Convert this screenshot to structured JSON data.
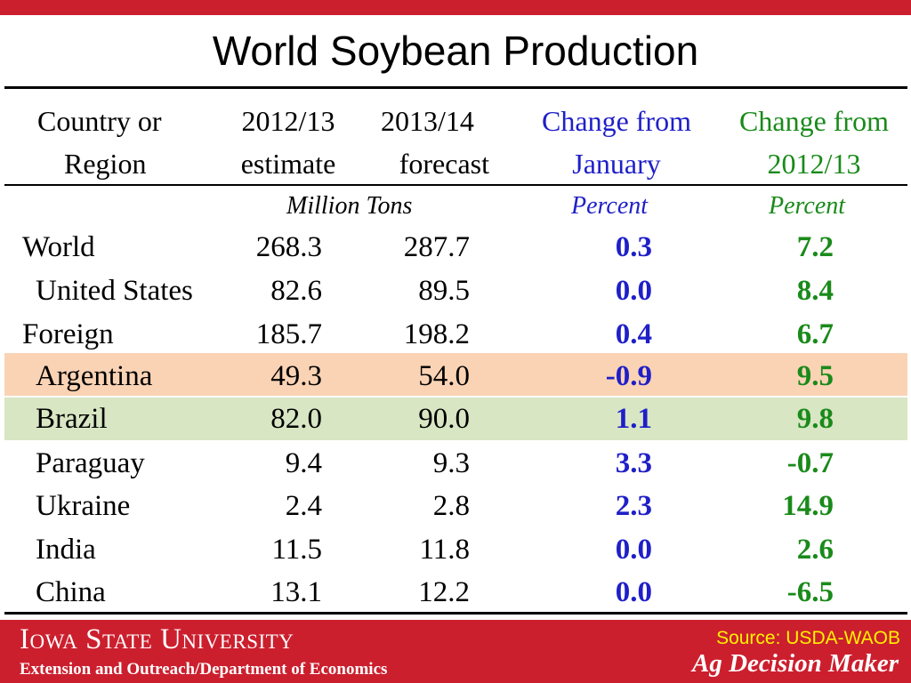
{
  "title": "World Soybean Production",
  "headers": {
    "country": [
      "Country or",
      "Region"
    ],
    "estimate": [
      "2012/13",
      "estimate"
    ],
    "forecast": [
      "2013/14",
      "forecast"
    ],
    "change_jan": [
      "Change from",
      "January"
    ],
    "change_year": [
      "Change from",
      "2012/13"
    ]
  },
  "units": {
    "tons": "Million Tons",
    "percent_jan": "Percent",
    "percent_year": "Percent"
  },
  "rows": [
    {
      "name": "World",
      "estimate": "268.3",
      "forecast": "287.7",
      "change_jan": "0.3",
      "change_year": "7.2"
    },
    {
      "name": "United States",
      "estimate": "82.6",
      "forecast": "89.5",
      "change_jan": "0.0",
      "change_year": "8.4"
    },
    {
      "name": "Foreign",
      "estimate": "185.7",
      "forecast": "198.2",
      "change_jan": "0.4",
      "change_year": "6.7"
    },
    {
      "name": "Argentina",
      "estimate": "49.3",
      "forecast": "54.0",
      "change_jan": "-0.9",
      "change_year": "9.5"
    },
    {
      "name": "Brazil",
      "estimate": "82.0",
      "forecast": "90.0",
      "change_jan": "1.1",
      "change_year": "9.8"
    },
    {
      "name": "Paraguay",
      "estimate": "9.4",
      "forecast": "9.3",
      "change_jan": "3.3",
      "change_year": "-0.7"
    },
    {
      "name": "Ukraine",
      "estimate": "2.4",
      "forecast": "2.8",
      "change_jan": "2.3",
      "change_year": "14.9"
    },
    {
      "name": "India",
      "estimate": "11.5",
      "forecast": "11.8",
      "change_jan": "0.0",
      "change_year": "2.6"
    },
    {
      "name": "China",
      "estimate": "13.1",
      "forecast": "12.2",
      "change_jan": "0.0",
      "change_year": "-6.5"
    }
  ],
  "highlight_colors": {
    "argentina": "#fad3b5",
    "brazil": "#d8e6c3"
  },
  "footer": {
    "university": "Iowa State University",
    "department": "Extension and Outreach/Department of Economics",
    "source": "Source: USDA-WAOB",
    "brand": "Ag Decision Maker"
  },
  "colors": {
    "accent_red": "#cc1f2e",
    "blue": "#1f1fc8",
    "green": "#1a8a1a",
    "source_yellow": "#fff200"
  }
}
